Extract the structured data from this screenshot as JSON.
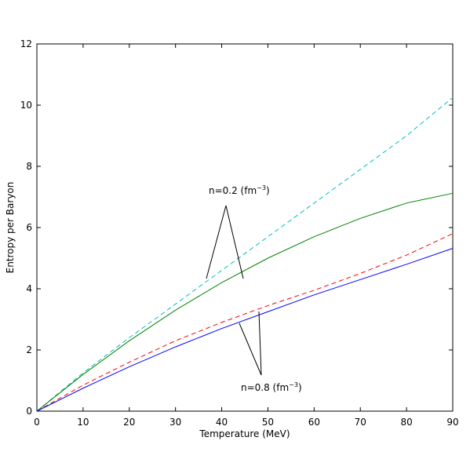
{
  "chart_data": {
    "type": "line",
    "xlabel": "Temperature (MeV)",
    "ylabel": "Entropy per Baryon",
    "x": [
      0,
      10,
      20,
      30,
      40,
      50,
      60,
      70,
      80,
      90
    ],
    "series": [
      {
        "color": "#00bfbf",
        "style": "dashed",
        "values": [
          0,
          1.25,
          2.4,
          3.5,
          4.6,
          5.7,
          6.8,
          7.9,
          9.0,
          10.25
        ]
      },
      {
        "color": "#008000",
        "style": "solid",
        "values": [
          0,
          1.2,
          2.3,
          3.3,
          4.2,
          5.0,
          5.7,
          6.3,
          6.8,
          7.12
        ]
      },
      {
        "color": "#ff0000",
        "style": "dashed",
        "values": [
          0,
          0.85,
          1.6,
          2.3,
          2.9,
          3.45,
          3.95,
          4.5,
          5.1,
          5.8
        ]
      },
      {
        "color": "#0000ff",
        "style": "solid",
        "values": [
          0,
          0.75,
          1.45,
          2.1,
          2.7,
          3.25,
          3.8,
          4.3,
          4.8,
          5.32
        ]
      }
    ],
    "xlim": [
      0,
      90
    ],
    "xticks": [
      0,
      10,
      20,
      30,
      40,
      50,
      60,
      70,
      80,
      90
    ],
    "ylim": [
      0,
      12
    ],
    "yticks": [
      0,
      2,
      4,
      6,
      8,
      10,
      12
    ],
    "annotations": [
      {
        "text": "n=0.2 (fm",
        "sup": "−3",
        "tail": ")"
      },
      {
        "text": "n=0.8 (fm",
        "sup": "−3",
        "tail": ")"
      }
    ]
  }
}
